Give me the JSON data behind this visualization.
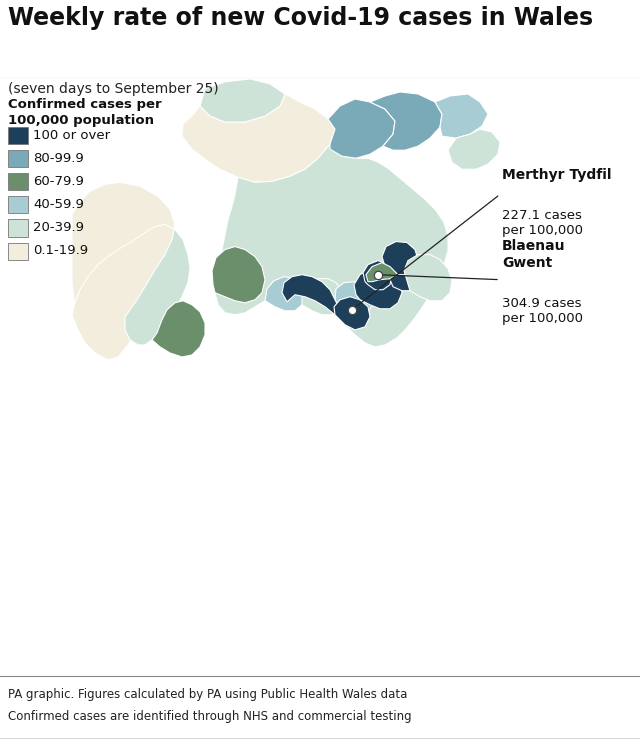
{
  "title": "Weekly rate of new Covid-19 cases in Wales",
  "subtitle": "(seven days to September 25)",
  "legend_title1": "Confirmed cases per",
  "legend_title2": "100,000 population",
  "legend_items": [
    {
      "label": "100 or over",
      "color": "#1e3f5a"
    },
    {
      "label": "80-99.9",
      "color": "#7aaab8"
    },
    {
      "label": "60-79.9",
      "color": "#6b8f6a"
    },
    {
      "label": "40-59.9",
      "color": "#a8ccd4"
    },
    {
      "label": "20-39.9",
      "color": "#cde3d8"
    },
    {
      "label": "0.1-19.9",
      "color": "#f2eddc"
    }
  ],
  "background_color": "#b8d4e2",
  "annotation1_name": "Merthyr Tydfil",
  "annotation1_cases": "227.1 cases\nper 100,000",
  "annotation2_name": "Blaenau\nGwent",
  "annotation2_cases": "304.9 cases\nper 100,000",
  "footer1": "PA graphic. Figures calculated by PA using Public Health Wales data",
  "footer2": "Confirmed cases are identified through NHS and commercial testing",
  "title_fontsize": 17,
  "subtitle_fontsize": 10,
  "legend_fontsize": 9.5,
  "footer_fontsize": 8.5
}
